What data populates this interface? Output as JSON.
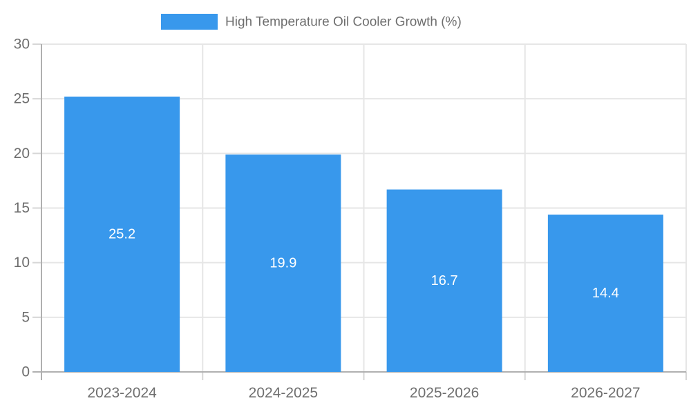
{
  "chart_data": {
    "type": "bar",
    "title": "High Temperature Oil Cooler Growth (%)",
    "legend": {
      "label": "High Temperature Oil Cooler Growth (%)",
      "position": "top"
    },
    "categories": [
      "2023-2024",
      "2024-2025",
      "2025-2026",
      "2026-2027"
    ],
    "values": [
      25.2,
      19.9,
      16.7,
      14.4
    ],
    "value_labels": [
      "25.2",
      "19.9",
      "16.7",
      "14.4"
    ],
    "xlabel": "",
    "ylabel": "",
    "ylim": [
      0,
      30
    ],
    "ytick_step": 5,
    "yticks": [
      0,
      5,
      10,
      15,
      20,
      25,
      30
    ],
    "grid": true,
    "colors": {
      "bar": "#3898ec",
      "grid": "#e6e6e6",
      "tick": "#d6d6d6",
      "axis": "#b0b0b0",
      "tick_label": "#6e6e6e",
      "value_label": "#ffffff",
      "legend_text": "#6e6e6e",
      "background": "#ffffff"
    }
  }
}
